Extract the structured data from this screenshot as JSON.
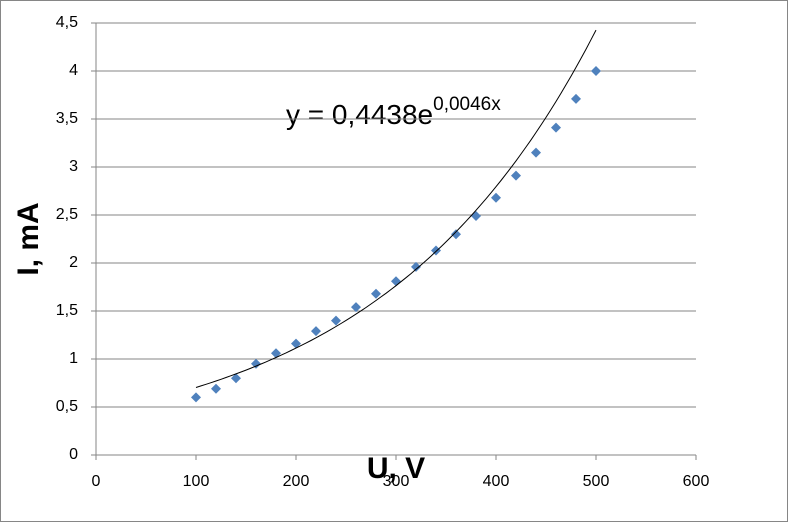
{
  "chart_data": {
    "type": "scatter",
    "x_label": "U, V",
    "y_label": "I,  mA",
    "series": [
      {
        "name": "I",
        "color": "#4f81bd",
        "x": [
          100,
          120,
          140,
          160,
          180,
          200,
          220,
          240,
          260,
          280,
          300,
          320,
          340,
          360,
          380,
          400,
          420,
          440,
          460,
          480,
          500
        ],
        "values": [
          0.6,
          0.69,
          0.8,
          0.95,
          1.06,
          1.16,
          1.29,
          1.4,
          1.54,
          1.68,
          1.81,
          1.96,
          2.13,
          2.3,
          2.49,
          2.68,
          2.91,
          3.15,
          3.41,
          3.71,
          4.0
        ]
      }
    ],
    "trendline": {
      "equation": "y = 0,4438e",
      "exponent": "0,0046x",
      "a": 0.4438,
      "b": 0.0046,
      "color": "#000000"
    },
    "xlim": [
      0,
      600
    ],
    "xticks": [
      0,
      100,
      200,
      300,
      400,
      500,
      600
    ],
    "ylim": [
      0,
      4.5
    ],
    "yticks": [
      0,
      {
        "value": 0.5,
        "label": "0,5"
      },
      1,
      {
        "value": 1.5,
        "label": "1,5"
      },
      2,
      {
        "value": 2.5,
        "label": "2,5"
      },
      3,
      {
        "value": 3.5,
        "label": "3,5"
      },
      4,
      {
        "value": 4.5,
        "label": "4,5"
      }
    ],
    "grid": true
  }
}
